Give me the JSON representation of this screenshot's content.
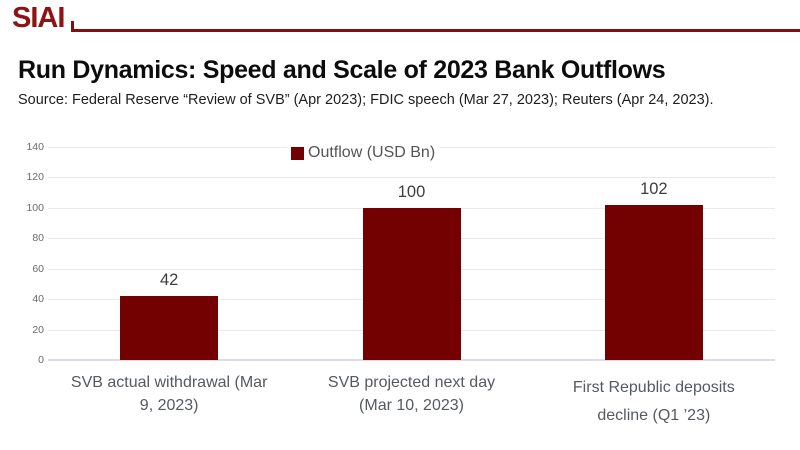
{
  "brand": {
    "logo_text": "SIAI",
    "logo_color": "#8e1313",
    "rule_color": "#820f0f"
  },
  "header": {
    "title": "Run Dynamics: Speed and Scale of 2023 Bank Outflows",
    "source_text": "Source: Federal Reserve “Review of SVB” (Apr 2023); FDIC speech (Mar 27, 2023); Reuters (Apr 24, 2023)."
  },
  "legend": {
    "label": "Outflow (USD Bn)",
    "swatch_color": "#740101"
  },
  "colors": {
    "bar": "#740101",
    "gridline": "#e9e9f1",
    "axis_baseline": "#dcdce4",
    "tick_label": "#6b6b6b",
    "value_label": "#3d3d3d",
    "category_label": "#555a5f"
  },
  "chart_data": {
    "type": "bar",
    "title": "Run Dynamics: Speed and Scale of 2023 Bank Outflows",
    "categories": [
      "SVB actual withdrawal (Mar 9, 2023)",
      "SVB projected next day (Mar 10, 2023)",
      "First Republic deposits decline (Q1 ’23)"
    ],
    "category_display_lines": [
      [
        "SVB actual withdrawal (Mar",
        "9, 2023)"
      ],
      [
        "SVB projected next day",
        "(Mar 10, 2023)"
      ],
      [
        "First Republic deposits",
        "decline (Q1 ’23)"
      ]
    ],
    "series": [
      {
        "name": "Outflow (USD Bn)",
        "values": [
          42,
          100,
          102
        ]
      }
    ],
    "xlabel": "",
    "ylabel": "",
    "ylim": [
      0,
      140
    ],
    "yticks": [
      0,
      20,
      40,
      60,
      80,
      100,
      120,
      140
    ],
    "grid": true,
    "legend_position": "top-center",
    "bar_color": "#740101"
  }
}
